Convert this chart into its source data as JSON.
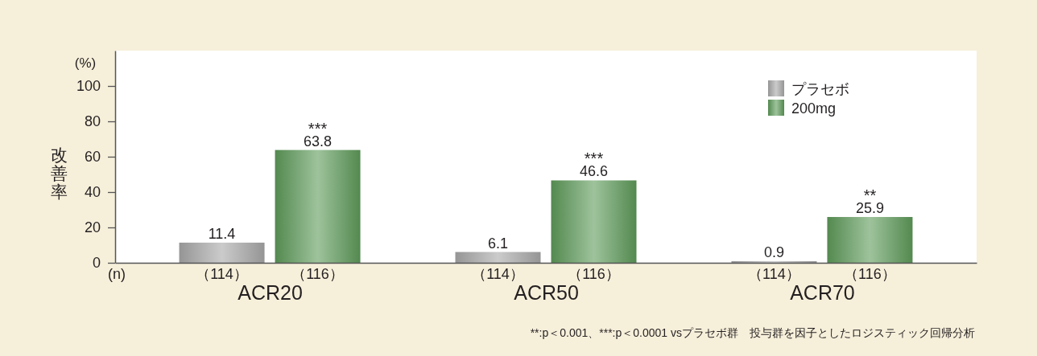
{
  "chart_data": {
    "type": "bar",
    "ylabel": "改善率",
    "categories": [
      "ACR20",
      "ACR50",
      "ACR70"
    ],
    "series": [
      {
        "name": "プラセボ",
        "color": "#a9a9a9",
        "values": [
          11.4,
          6.1,
          0.9
        ]
      },
      {
        "name": "200mg",
        "color": "#5e9b5a",
        "values": [
          63.8,
          46.6,
          25.9
        ]
      }
    ],
    "ylim": [
      0,
      120
    ],
    "yticks": [
      0,
      20,
      40,
      60,
      80,
      100
    ],
    "data_labels": true,
    "legend": "top right",
    "annotations": [
      "(%)",
      "(n)",
      "（114）",
      "（116）",
      "（114）",
      "（116）",
      "（114）",
      "（116）",
      "***",
      "***",
      "**",
      "**:p＜0.001、***:p＜0.0001 vsプラセボ群　投与群を因子としたロジスティック回帰分析"
    ]
  }
}
